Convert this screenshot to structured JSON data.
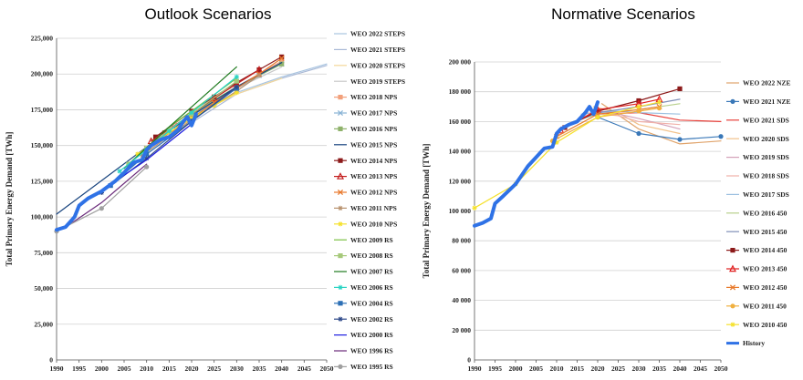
{
  "chart_data": [
    {
      "type": "line",
      "title": "Outlook Scenarios",
      "xlabel": "",
      "ylabel": "Total Primary Energy Demand [TWh]",
      "xlim": [
        1990,
        2050
      ],
      "ylim": [
        0,
        225000
      ],
      "x_ticks": [
        "1990",
        "1995",
        "2000",
        "2005",
        "2010",
        "2015",
        "2020",
        "2025",
        "2030",
        "2035",
        "2040",
        "2045",
        "2050"
      ],
      "y_ticks": [
        "0",
        "25,000",
        "50,000",
        "75,000",
        "100,000",
        "125,000",
        "150,000",
        "175,000",
        "200,000",
        "225,000"
      ],
      "grid": "horizontal",
      "legend": "right",
      "series": [
        {
          "name": "WEO 2022 STEPS",
          "color": "#a8c4e0",
          "marker": "none",
          "x": [
            2021,
            2030,
            2040,
            2050
          ],
          "y": [
            173000,
            187000,
            198000,
            207000
          ]
        },
        {
          "name": "WEO 2021 STEPS",
          "color": "#a9b9d6",
          "marker": "none",
          "x": [
            2020,
            2030,
            2040,
            2050
          ],
          "y": [
            166000,
            186000,
            197000,
            206000
          ]
        },
        {
          "name": "WEO 2020 STEPS",
          "color": "#f4d799",
          "marker": "none",
          "x": [
            2019,
            2025,
            2030,
            2040
          ],
          "y": [
            172000,
            178000,
            186000,
            197000
          ]
        },
        {
          "name": "WEO 2019 STEPS",
          "color": "#c8c8c8",
          "marker": "none",
          "x": [
            2018,
            2025,
            2030,
            2040
          ],
          "y": [
            168000,
            182000,
            190000,
            205000
          ]
        },
        {
          "name": "WEO 2018 NPS",
          "color": "#f2a07b",
          "marker": "square",
          "x": [
            2017,
            2025,
            2030,
            2035,
            2040
          ],
          "y": [
            164000,
            181000,
            191000,
            200000,
            209000
          ]
        },
        {
          "name": "WEO 2017 NPS",
          "color": "#8ab4d6",
          "marker": "cross",
          "x": [
            2016,
            2025,
            2030,
            2035,
            2040
          ],
          "y": [
            163000,
            180000,
            190000,
            199000,
            207000
          ]
        },
        {
          "name": "WEO 2016 NPS",
          "color": "#8fb26b",
          "marker": "square",
          "x": [
            2014,
            2020,
            2025,
            2030,
            2040
          ],
          "y": [
            159000,
            172000,
            182000,
            191000,
            207000
          ]
        },
        {
          "name": "WEO 2015 NPS",
          "color": "#17437e",
          "marker": "none",
          "x": [
            1990,
            2013,
            2020,
            2025,
            2030,
            2040
          ],
          "y": [
            102000,
            156000,
            171000,
            181000,
            191000,
            208000
          ]
        },
        {
          "name": "WEO 2014 NPS",
          "color": "#8c1a1a",
          "marker": "square",
          "x": [
            2012,
            2020,
            2025,
            2030,
            2035,
            2040
          ],
          "y": [
            156000,
            174000,
            184000,
            194000,
            203000,
            212000
          ]
        },
        {
          "name": "WEO 2013 NPS",
          "color": "#c41e1e",
          "marker": "triangle",
          "x": [
            2011,
            2020,
            2025,
            2030,
            2035
          ],
          "y": [
            153000,
            172000,
            183000,
            193000,
            203000
          ]
        },
        {
          "name": "WEO 2012 NPS",
          "color": "#e8792c",
          "marker": "cross",
          "x": [
            2010,
            2020,
            2025,
            2030,
            2035,
            2040
          ],
          "y": [
            148000,
            169000,
            180000,
            190000,
            200000,
            211000
          ]
        },
        {
          "name": "WEO 2011 NPS",
          "color": "#b8926e",
          "marker": "star",
          "x": [
            2009,
            2020,
            2025,
            2030,
            2035
          ],
          "y": [
            143000,
            168000,
            178000,
            188000,
            199000
          ]
        },
        {
          "name": "WEO 2010 NPS",
          "color": "#f5e12c",
          "marker": "star",
          "x": [
            2008,
            2015,
            2020,
            2025,
            2030
          ],
          "y": [
            144000,
            159000,
            169000,
            178000,
            187000
          ]
        },
        {
          "name": "WEO 2009 RS",
          "color": "#7bc142",
          "marker": "none",
          "x": [
            2007,
            2015,
            2020,
            2030
          ],
          "y": [
            140000,
            163000,
            174000,
            197000
          ]
        },
        {
          "name": "WEO 2008 RS",
          "color": "#a6c97a",
          "marker": "square",
          "x": [
            2006,
            2010,
            2015,
            2020,
            2030
          ],
          "y": [
            137000,
            148000,
            161000,
            172000,
            195000
          ]
        },
        {
          "name": "WEO 2007 RS",
          "color": "#1f7a1f",
          "marker": "none",
          "x": [
            2005,
            2015,
            2020,
            2025,
            2030
          ],
          "y": [
            134000,
            163000,
            177000,
            191000,
            205000
          ]
        },
        {
          "name": "WEO 2006 RS",
          "color": "#2bd4c4",
          "marker": "star",
          "x": [
            2004,
            2010,
            2015,
            2020,
            2030
          ],
          "y": [
            132000,
            147000,
            160000,
            173000,
            198000
          ]
        },
        {
          "name": "WEO 2004 RS",
          "color": "#2c6fb5",
          "marker": "square",
          "x": [
            2002,
            2010,
            2020,
            2030
          ],
          "y": [
            122000,
            144000,
            167000,
            190000
          ]
        },
        {
          "name": "WEO 2002 RS",
          "color": "#2f4a8a",
          "marker": "star",
          "x": [
            2000,
            2010,
            2020,
            2030
          ],
          "y": [
            117000,
            141000,
            167000,
            191000
          ]
        },
        {
          "name": "WEO 2000 RS",
          "color": "#1d1de0",
          "marker": "none",
          "x": [
            1997,
            2010,
            2020
          ],
          "y": [
            112000,
            140000,
            165000
          ]
        },
        {
          "name": "WEO 1996 RS",
          "color": "#6a2a7a",
          "marker": "none",
          "x": [
            1993,
            2000,
            2010
          ],
          "y": [
            95000,
            110000,
            137000
          ]
        },
        {
          "name": "WEO 1995 RS",
          "color": "#a0a0a0",
          "marker": "circle",
          "x": [
            1990,
            2000,
            2010
          ],
          "y": [
            90000,
            106000,
            135000
          ]
        },
        {
          "name": "",
          "color": "#2f72e6",
          "marker": "none",
          "width": 4,
          "x": [
            1990,
            1992,
            1994,
            1995,
            1997,
            2000,
            2003,
            2005,
            2007,
            2009,
            2010,
            2011,
            2013,
            2015,
            2017,
            2018,
            2019,
            2020,
            2021
          ],
          "y": [
            91000,
            93000,
            100000,
            108000,
            113000,
            118000,
            125000,
            131000,
            138000,
            140000,
            147000,
            150000,
            154000,
            156000,
            161000,
            166000,
            170000,
            164000,
            172000
          ]
        }
      ]
    },
    {
      "type": "line",
      "title": "Normative Scenarios",
      "xlabel": "",
      "ylabel": "Total Primary Energy Demand [TWh]",
      "xlim": [
        1990,
        2050
      ],
      "ylim": [
        0,
        200000
      ],
      "x_ticks": [
        "1990",
        "1995",
        "2000",
        "2005",
        "2010",
        "2015",
        "2020",
        "2025",
        "2030",
        "2035",
        "2040",
        "2045",
        "2050"
      ],
      "y_ticks": [
        "0",
        "20 000",
        "40 000",
        "60 000",
        "80 000",
        "100 000",
        "120 000",
        "140 000",
        "160 000",
        "180 000",
        "200 000"
      ],
      "grid": "horizontal",
      "legend": "right",
      "series": [
        {
          "name": "WEO 2022 NZE",
          "color": "#e0a36a",
          "marker": "none",
          "x": [
            2021,
            2030,
            2040,
            2050
          ],
          "y": [
            172000,
            155000,
            145000,
            147000
          ]
        },
        {
          "name": "WEO 2021 NZE",
          "color": "#3a78b8",
          "marker": "circle",
          "x": [
            2020,
            2030,
            2040,
            2050
          ],
          "y": [
            163000,
            152000,
            148000,
            150000
          ]
        },
        {
          "name": "WEO 2021 SDS",
          "color": "#e8403a",
          "marker": "none",
          "x": [
            2020,
            2030,
            2040,
            2050
          ],
          "y": [
            165000,
            166000,
            161000,
            160000
          ]
        },
        {
          "name": "WEO 2020 SDS",
          "color": "#f2c28a",
          "marker": "none",
          "x": [
            2019,
            2025,
            2030,
            2040
          ],
          "y": [
            170000,
            166000,
            158000,
            152000
          ]
        },
        {
          "name": "WEO 2019 SDS",
          "color": "#d4a0b8",
          "marker": "none",
          "x": [
            2018,
            2025,
            2030,
            2040
          ],
          "y": [
            168000,
            165000,
            162000,
            155000
          ]
        },
        {
          "name": "WEO 2018 SDS",
          "color": "#f0b0a8",
          "marker": "none",
          "x": [
            2017,
            2025,
            2030,
            2040
          ],
          "y": [
            166000,
            164000,
            160000,
            158000
          ]
        },
        {
          "name": "WEO 2017 SDS",
          "color": "#9cc0e0",
          "marker": "none",
          "x": [
            2016,
            2025,
            2030,
            2040
          ],
          "y": [
            165000,
            167000,
            166000,
            165000
          ]
        },
        {
          "name": "WEO 2016 450",
          "color": "#b8d08c",
          "marker": "none",
          "x": [
            2014,
            2020,
            2030,
            2040
          ],
          "y": [
            160000,
            165000,
            168000,
            172000
          ]
        },
        {
          "name": "WEO 2015 450",
          "color": "#8090b8",
          "marker": "none",
          "x": [
            2013,
            2020,
            2030,
            2040
          ],
          "y": [
            158000,
            166000,
            170000,
            175000
          ]
        },
        {
          "name": "WEO 2014 450",
          "color": "#8c1a1a",
          "marker": "square",
          "x": [
            2012,
            2020,
            2030,
            2040
          ],
          "y": [
            156000,
            167000,
            174000,
            182000
          ]
        },
        {
          "name": "WEO 2013 450",
          "color": "#e02020",
          "marker": "triangle",
          "x": [
            2011,
            2020,
            2030,
            2035
          ],
          "y": [
            154000,
            168000,
            172000,
            175000
          ]
        },
        {
          "name": "WEO 2012 450",
          "color": "#e87a2c",
          "marker": "cross",
          "x": [
            2010,
            2020,
            2030,
            2035
          ],
          "y": [
            150000,
            165000,
            168000,
            170000
          ]
        },
        {
          "name": "WEO 2011 450",
          "color": "#f0b040",
          "marker": "circle",
          "x": [
            2009,
            2020,
            2030,
            2035
          ],
          "y": [
            147000,
            163000,
            167000,
            169000
          ]
        },
        {
          "name": "WEO 2010 450",
          "color": "#f5e12c",
          "marker": "star",
          "x": [
            1990,
            2000,
            2010,
            2020,
            2030,
            2035
          ],
          "y": [
            102000,
            118000,
            146000,
            163000,
            170000,
            173000
          ]
        },
        {
          "name": "History",
          "color": "#2f72e6",
          "marker": "none",
          "width": 4,
          "x": [
            1990,
            1992,
            1994,
            1995,
            1997,
            2000,
            2003,
            2005,
            2007,
            2009,
            2010,
            2011,
            2013,
            2015,
            2017,
            2018,
            2019,
            2020
          ],
          "y": [
            90000,
            92000,
            95000,
            105000,
            110000,
            118000,
            130000,
            136000,
            142000,
            143000,
            152000,
            155000,
            158000,
            160000,
            166000,
            170000,
            165000,
            173000
          ]
        }
      ]
    }
  ]
}
